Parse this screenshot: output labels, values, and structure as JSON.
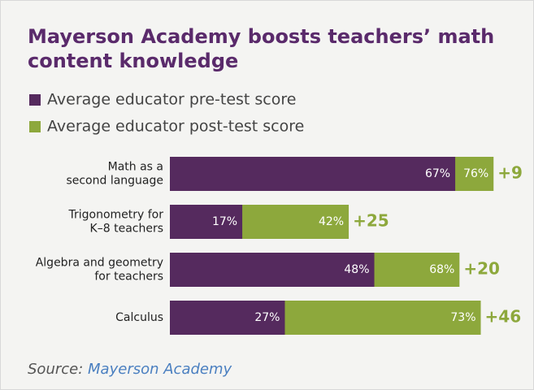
{
  "chart_data": {
    "type": "overlap-bar",
    "title": [
      "Mayerson Academy boosts teachers’ math",
      "content knowledge"
    ],
    "categories": [
      [
        "Math as a",
        "second language"
      ],
      [
        "Trigonometry for",
        "K–8 teachers"
      ],
      [
        "Algebra and geometry",
        "for teachers"
      ],
      [
        "Calculus"
      ]
    ],
    "series": [
      {
        "name": "Average educator pre-test score",
        "color": "#552a5e",
        "values": [
          67,
          17,
          48,
          27
        ],
        "value_labels": [
          "67%",
          "17%",
          "48%",
          "27%"
        ]
      },
      {
        "name": "Average educator post-test score",
        "color": "#8da83c",
        "values": [
          76,
          42,
          68,
          73
        ],
        "value_labels": [
          "76%",
          "42%",
          "68%",
          "73%"
        ]
      }
    ],
    "annotations": [
      "+9",
      "+25",
      "+20",
      "+46"
    ],
    "source_prefix": "Source:",
    "source": "Mayerson Academy"
  }
}
